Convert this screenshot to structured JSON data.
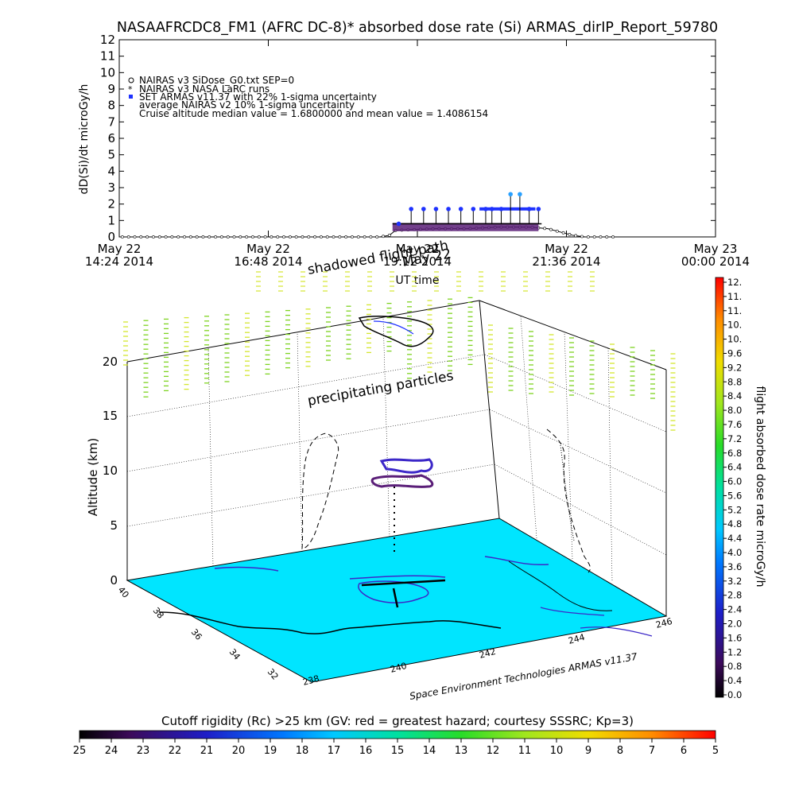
{
  "title": "NASAAFRCDC8_FM1 (AFRC DC-8)* absorbed dose rate (Si) ARMAS_dirIP_Report_59780",
  "chart_data": [
    {
      "type": "line",
      "ylabel": "dD(Si)/dt microGy/h",
      "xlabel": "UT time",
      "ylim": [
        0,
        12
      ],
      "yticks": [
        "0",
        "1",
        "2",
        "3",
        "4",
        "5",
        "6",
        "7",
        "8",
        "9",
        "10",
        "11",
        "12"
      ],
      "xticks": [
        {
          "date": "May 22",
          "time": "14:24 2014"
        },
        {
          "date": "May 22",
          "time": "16:48 2014"
        },
        {
          "date": "May 22",
          "time": "19:12 2014"
        },
        {
          "date": "May 22",
          "time": "21:36 2014"
        },
        {
          "date": "May 23",
          "time": "00:00 2014"
        }
      ],
      "xlim_hours": [
        14.4,
        24.0
      ],
      "legend": [
        "NAIRAS v3 SiDose_G0.txt SEP=0",
        "NAIRAS v3 NASA LaRC runs",
        "SET ARMAS v11.37 with 22% 1-sigma uncertainty",
        "average NAIRAS v2 10% 1-sigma uncertainty",
        "Cruise altitude median value = 1.6800000 and mean value = 1.4086154"
      ],
      "series": [
        {
          "name": "NAIRAS v3 SiDose_G0.txt SEP=0",
          "x": [
            14.45,
            15.0,
            16.0,
            17.0,
            18.0,
            18.6,
            18.75,
            18.85,
            19.5,
            20.0,
            20.5,
            21.0,
            21.3,
            21.5,
            21.7,
            21.9,
            22.1,
            22.3
          ],
          "y": [
            0,
            0,
            0,
            0,
            0,
            0,
            0.1,
            0.4,
            0.5,
            0.5,
            0.6,
            0.6,
            0.5,
            0.3,
            0.1,
            0,
            0,
            0
          ]
        },
        {
          "name": "SET ARMAS v11.37 with 22% 1-sigma uncertainty",
          "x": [
            18.9,
            19.1,
            19.3,
            19.5,
            19.7,
            19.9,
            20.1,
            20.3,
            20.4,
            20.55,
            20.7,
            20.85,
            21.0,
            21.15
          ],
          "y": [
            0.8,
            1.7,
            1.7,
            1.7,
            1.7,
            1.7,
            1.7,
            1.7,
            1.7,
            1.7,
            2.6,
            2.6,
            1.7,
            1.7
          ]
        }
      ],
      "cruise_median": 1.68,
      "cruise_mean": 1.4086154
    },
    {
      "type": "area",
      "zlabel": "Altitude (km)",
      "zticks": [
        "0",
        "5",
        "10",
        "15",
        "20"
      ],
      "lat_ticks": [
        "40",
        "38",
        "36",
        "34",
        "32"
      ],
      "lon_ticks": [
        "238",
        "240",
        "242",
        "244",
        "246"
      ],
      "annotations": [
        "shadowed flight path",
        "May 22",
        "precipitating particles"
      ],
      "footer": "Space Environment Technologies ARMAS v11.37"
    }
  ],
  "colorbar_right": {
    "label": "flight absorbed dose rate microGy/h",
    "ticks": [
      "12.",
      "11.",
      "11.",
      "10.",
      "10.",
      "9.6",
      "9.2",
      "8.8",
      "8.4",
      "8.0",
      "7.6",
      "7.2",
      "6.8",
      "6.4",
      "6.0",
      "5.6",
      "5.2",
      "4.8",
      "4.4",
      "4.0",
      "3.6",
      "3.2",
      "2.8",
      "2.4",
      "2.0",
      "1.6",
      "1.2",
      "0.8",
      "0.4",
      "0.0"
    ]
  },
  "colorbar_bottom": {
    "label": "Cutoff rigidity (Rc) >25 km (GV: red = greatest hazard; courtesy SSSRC; Kp=3)",
    "ticks": [
      "25",
      "24",
      "23",
      "22",
      "21",
      "20",
      "19",
      "18",
      "17",
      "16",
      "15",
      "14",
      "13",
      "12",
      "11",
      "10",
      "9",
      "8",
      "7",
      "6",
      "5"
    ]
  },
  "colors": {
    "surface": "#00e5ff",
    "contour": "#3c28c8",
    "particles_green": "#7ed321",
    "particles_yellow": "#d4e630",
    "armas": "#1e32ff",
    "armas_peak": "#28a0ff",
    "nairas": "#5a1e78"
  }
}
